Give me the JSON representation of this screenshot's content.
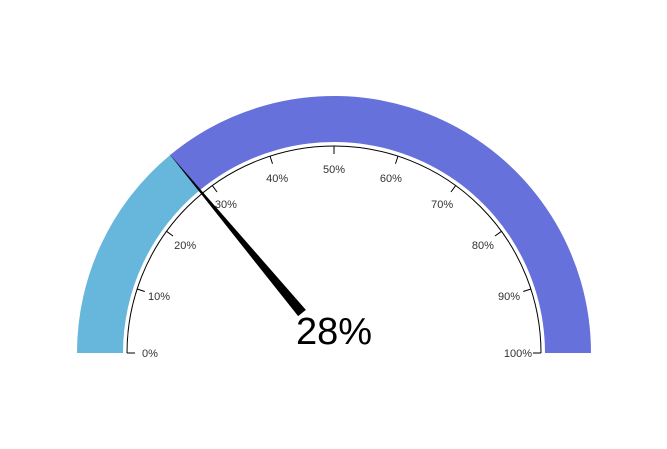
{
  "chart_data": {
    "type": "gauge",
    "value": 28,
    "value_label": "28%",
    "min": 0,
    "max": 100,
    "band_colors": {
      "filled": "#67b7dc",
      "remaining": "#6771dc"
    },
    "needle_color": "#000000",
    "ticks": [
      {
        "value": 0,
        "label": "0%"
      },
      {
        "value": 10,
        "label": "10%"
      },
      {
        "value": 20,
        "label": "20%"
      },
      {
        "value": 30,
        "label": "30%"
      },
      {
        "value": 40,
        "label": "40%"
      },
      {
        "value": 50,
        "label": "50%"
      },
      {
        "value": 60,
        "label": "60%"
      },
      {
        "value": 70,
        "label": "70%"
      },
      {
        "value": 80,
        "label": "80%"
      },
      {
        "value": 90,
        "label": "90%"
      },
      {
        "value": 100,
        "label": "100%"
      }
    ]
  }
}
